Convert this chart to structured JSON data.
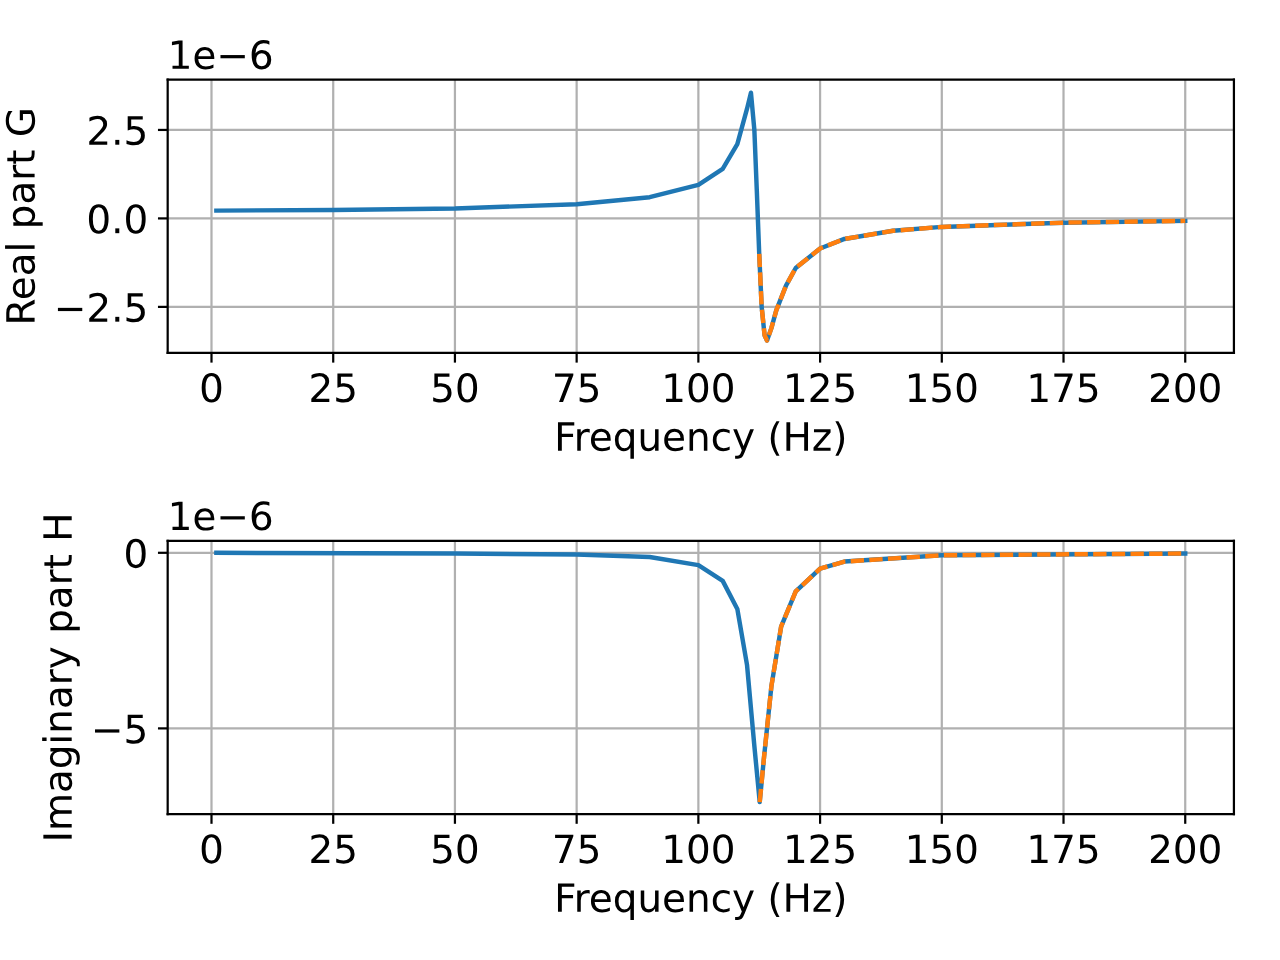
{
  "chart_data": [
    {
      "type": "line",
      "xlabel": "Frequency (Hz)",
      "ylabel": "Real part G",
      "annotations": [
        "1e−6"
      ],
      "grid": true,
      "xlim": [
        -9,
        210
      ],
      "xticks": [
        0,
        25,
        50,
        75,
        100,
        125,
        150,
        175,
        200
      ],
      "ylim": [
        -3.8,
        3.92
      ],
      "yticks": [
        {
          "value": -2.5,
          "label": "−2.5"
        },
        {
          "value": 0,
          "label": "0.0"
        },
        {
          "value": 2.5,
          "label": "2.5"
        }
      ],
      "series": [
        {
          "color": "#1f77b4",
          "line_style": "solid",
          "x": [
            1,
            25,
            50,
            75,
            90,
            100,
            105,
            108,
            110,
            110.8,
            111.5,
            112,
            112.5,
            113,
            113.6,
            114.1,
            115,
            116,
            118,
            120,
            125,
            130,
            140,
            150,
            175,
            200
          ],
          "values": [
            0.22,
            0.24,
            0.28,
            0.4,
            0.6,
            0.95,
            1.4,
            2.1,
            3.1,
            3.55,
            2.5,
            0.8,
            -1.0,
            -2.5,
            -3.3,
            -3.45,
            -3.1,
            -2.6,
            -1.9,
            -1.4,
            -0.85,
            -0.58,
            -0.35,
            -0.24,
            -0.12,
            -0.07
          ]
        },
        {
          "color": "#ff7f0e",
          "line_style": "dashed",
          "x": [
            112.5,
            113,
            113.6,
            114.1,
            115,
            116,
            118,
            120,
            125,
            130,
            140,
            150,
            175,
            200
          ],
          "values": [
            -1.0,
            -2.5,
            -3.3,
            -3.45,
            -3.1,
            -2.6,
            -1.9,
            -1.4,
            -0.85,
            -0.58,
            -0.35,
            -0.24,
            -0.12,
            -0.07
          ]
        }
      ]
    },
    {
      "type": "line",
      "xlabel": "Frequency (Hz)",
      "ylabel": "Imaginary part H",
      "annotations": [
        "1e−6"
      ],
      "grid": true,
      "xlim": [
        -9,
        210
      ],
      "xticks": [
        0,
        25,
        50,
        75,
        100,
        125,
        150,
        175,
        200
      ],
      "ylim": [
        -7.44,
        0.34
      ],
      "yticks": [
        {
          "value": -5,
          "label": "−5"
        },
        0
      ],
      "series": [
        {
          "color": "#1f77b4",
          "line_style": "solid",
          "x": [
            1,
            50,
            75,
            90,
            100,
            105,
            108,
            110,
            111.5,
            112.6,
            113.5,
            115,
            117,
            120,
            125,
            130,
            150,
            200
          ],
          "values": [
            0.0,
            -0.02,
            -0.05,
            -0.12,
            -0.35,
            -0.8,
            -1.6,
            -3.2,
            -5.5,
            -7.1,
            -5.8,
            -3.8,
            -2.1,
            -1.1,
            -0.45,
            -0.25,
            -0.07,
            -0.02
          ]
        },
        {
          "color": "#ff7f0e",
          "line_style": "dashed",
          "x": [
            112.6,
            113.5,
            115,
            117,
            120,
            125,
            130,
            150,
            200
          ],
          "values": [
            -7.1,
            -5.8,
            -3.8,
            -2.1,
            -1.1,
            -0.45,
            -0.25,
            -0.07,
            -0.02
          ]
        }
      ]
    }
  ]
}
